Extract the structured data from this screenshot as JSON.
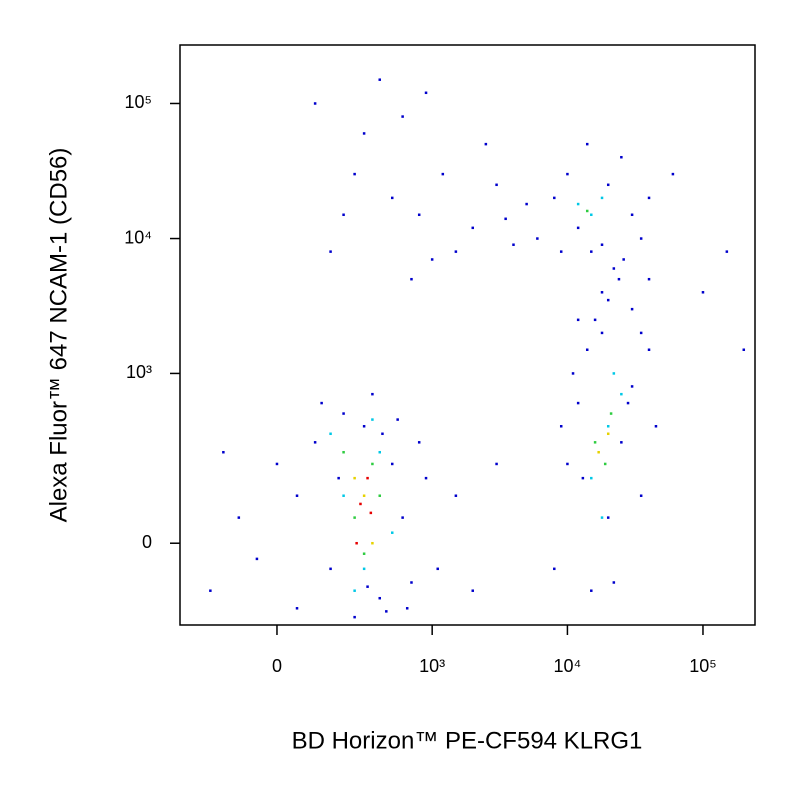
{
  "chart_data": {
    "type": "scatter",
    "x_label": "BD Horizon™ PE-CF594  KLRG1",
    "y_label": "Alexa Fluor™ 647 NCAM-1 (CD56)",
    "xscale": "biexponential",
    "yscale": "biexponential",
    "xlim": [
      -360,
      242000
    ],
    "ylim": [
      -210,
      271000
    ],
    "xticks": [
      0,
      {
        "value": 1000,
        "label": "10³"
      },
      {
        "value": 10000,
        "label": "10⁴"
      },
      {
        "value": 100000,
        "label": "10⁵"
      }
    ],
    "yticks": [
      0,
      {
        "value": 1000,
        "label": "10³"
      },
      {
        "value": 10000,
        "label": "10⁴"
      },
      {
        "value": 100000,
        "label": "10⁵"
      }
    ],
    "series": [
      {
        "color": "#0000cc",
        "x": [
          -200,
          -100,
          0,
          50,
          100,
          150,
          200,
          250,
          300,
          400,
          500,
          600,
          700,
          800,
          50,
          -50,
          120,
          350,
          450,
          550,
          900,
          1100,
          1500,
          2000,
          3000,
          -150,
          180,
          320,
          420,
          650,
          8000,
          10000,
          12000,
          15000,
          20000,
          25000,
          30000,
          35000,
          40000,
          9000,
          11000,
          18000,
          22000,
          28000,
          45000,
          13000,
          14000,
          16000,
          20000,
          24000,
          18000,
          30000,
          12000,
          26000,
          22000,
          35000,
          15000,
          40000,
          6000,
          8000,
          10000,
          12000,
          20000,
          25000,
          30000,
          35000,
          40000,
          9000,
          14000,
          18000,
          100,
          300,
          500,
          800,
          1200,
          2000,
          3000,
          5000,
          150,
          400,
          700,
          1500,
          250,
          600,
          900,
          2500,
          4000,
          200,
          1000,
          3500,
          150000,
          200000,
          100000,
          60000
        ],
        "y": [
          -100,
          50,
          200,
          -150,
          300,
          -50,
          500,
          -180,
          400,
          -120,
          200,
          50,
          -80,
          300,
          100,
          -30,
          600,
          700,
          -160,
          450,
          150,
          -50,
          100,
          -100,
          200,
          250,
          150,
          -90,
          350,
          -150,
          -50,
          200,
          600,
          -100,
          50,
          300,
          800,
          100,
          1500,
          400,
          1000,
          2000,
          -80,
          600,
          400,
          150,
          1500,
          2500,
          3500,
          5000,
          4000,
          3000,
          2500,
          7000,
          6000,
          2000,
          8000,
          5000,
          10000,
          20000,
          30000,
          12000,
          25000,
          40000,
          15000,
          10000,
          20000,
          8000,
          50000,
          9000,
          100000,
          60000,
          20000,
          15000,
          30000,
          12000,
          25000,
          18000,
          8000,
          150000,
          5000,
          8000,
          30000,
          80000,
          120000,
          50000,
          9000,
          15000,
          7000,
          14000,
          8000,
          1500,
          4000,
          30000
        ]
      },
      {
        "color": "#00c8e6",
        "x": [
          200,
          300,
          400,
          150,
          500,
          250,
          350,
          15000,
          20000,
          25000,
          18000,
          22000,
          15000,
          18000,
          12000
        ],
        "y": [
          100,
          -50,
          250,
          350,
          20,
          -100,
          450,
          150,
          400,
          700,
          50,
          1000,
          15000,
          20000,
          18000
        ]
      },
      {
        "color": "#2ecc40",
        "x": [
          250,
          350,
          300,
          200,
          400,
          16000,
          21000,
          19000,
          14000
        ],
        "y": [
          50,
          200,
          -20,
          250,
          100,
          300,
          500,
          200,
          16000
        ]
      },
      {
        "color": "#e6d200",
        "x": [
          300,
          250,
          350,
          20000,
          17000
        ],
        "y": [
          100,
          150,
          0,
          350,
          250
        ]
      },
      {
        "color": "#e60000",
        "x": [
          280,
          320,
          260,
          340
        ],
        "y": [
          80,
          150,
          0,
          60
        ]
      }
    ]
  }
}
